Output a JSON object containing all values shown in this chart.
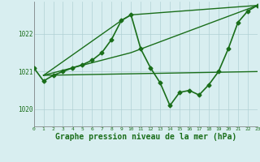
{
  "background_color": "#d8eef0",
  "grid_color": "#b0d0d4",
  "line_color": "#1a6e1a",
  "marker_color": "#1a6e1a",
  "xlabel": "Graphe pression niveau de la mer (hPa)",
  "xlabel_fontsize": 7,
  "ytick_labels": [
    "1020",
    "1021",
    "1022"
  ],
  "ytick_vals": [
    1020,
    1021,
    1022
  ],
  "xlim": [
    0,
    23
  ],
  "ylim": [
    1019.55,
    1022.85
  ],
  "series": [
    {
      "x": [
        0,
        1,
        2,
        3,
        4,
        5,
        6,
        7,
        8,
        9,
        10,
        11,
        12,
        13,
        14,
        15,
        16,
        17,
        18,
        19,
        20,
        21,
        22,
        23
      ],
      "y": [
        1021.1,
        1020.75,
        1020.9,
        1021.0,
        1021.1,
        1021.18,
        1021.3,
        1021.5,
        1021.85,
        1022.35,
        1022.5,
        1021.6,
        1021.1,
        1020.7,
        1020.1,
        1020.45,
        1020.5,
        1020.38,
        1020.65,
        1021.0,
        1021.6,
        1022.3,
        1022.6,
        1022.75
      ],
      "lw": 1.2,
      "marker": "D",
      "ms": 2.5
    },
    {
      "x": [
        1,
        23
      ],
      "y": [
        1020.9,
        1021.0
      ],
      "lw": 1.0,
      "marker": null,
      "ms": 0
    },
    {
      "x": [
        1,
        10,
        23
      ],
      "y": [
        1020.9,
        1021.5,
        1022.75
      ],
      "lw": 1.0,
      "marker": null,
      "ms": 0
    },
    {
      "x": [
        1,
        9,
        10,
        23
      ],
      "y": [
        1020.9,
        1022.35,
        1022.5,
        1022.75
      ],
      "lw": 1.0,
      "marker": null,
      "ms": 0
    }
  ]
}
